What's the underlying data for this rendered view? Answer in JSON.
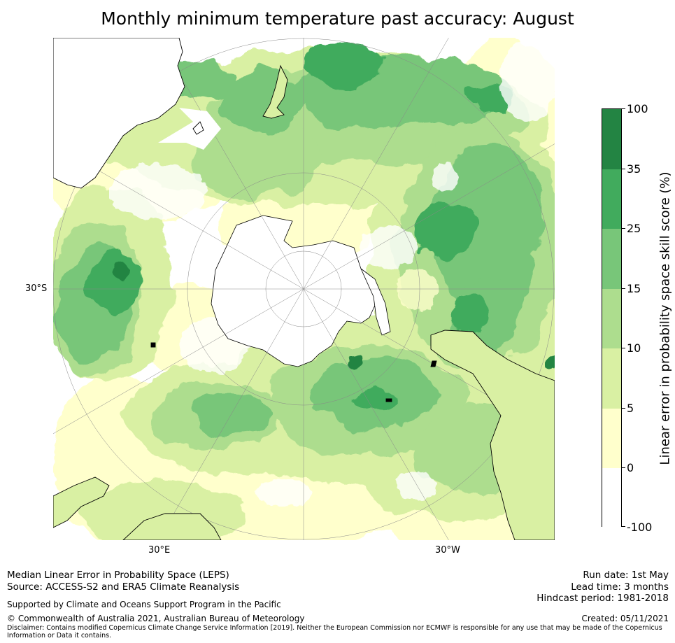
{
  "title": "Monthly minimum temperature past accuracy: August",
  "map": {
    "projection": "south polar stereographic",
    "lat_labels": {
      "left": "30°S"
    },
    "lon_labels": {
      "bottom_left": "30°E",
      "bottom_right": "30°W"
    },
    "graticule": "on",
    "coastlines": "on"
  },
  "colorbar": {
    "title": "Linear error in probability space skill score (%)",
    "ticks": [
      "100",
      "35",
      "25",
      "15",
      "10",
      "5",
      "0",
      "-100"
    ],
    "bins": [
      {
        "range": "-100 to 0",
        "color": "#ffffff"
      },
      {
        "range": "0 to 5",
        "color": "#ffffcc"
      },
      {
        "range": "5 to 10",
        "color": "#d9f0a3"
      },
      {
        "range": "10 to 15",
        "color": "#addd8e"
      },
      {
        "range": "15 to 25",
        "color": "#78c679"
      },
      {
        "range": "25 to 35",
        "color": "#41ab5d"
      },
      {
        "range": "35 to 100",
        "color": "#238443"
      }
    ]
  },
  "footer": {
    "line1": "Median Linear Error in Probability Space (LEPS)",
    "line2": "Source: ACCESS-S2 and ERA5 Climate Reanalysis",
    "line3": "Supported by Climate and Oceans Support Program in the Pacific",
    "line4": "© Commonwealth of Australia 2021, Australian Bureau of Meteorology",
    "disclaimer1": "Disclaimer: Contains modified Copernicus Climate Change Service Information [2019]. Neither the European Commission nor ECMWF is responsible for any use that may be made of the Copernicus",
    "disclaimer2": "Information or Data it contains.",
    "run_date": "Run date: 1st May",
    "lead_time": "Lead time: 3 months",
    "hindcast": "Hindcast period: 1981-2018",
    "created": "Created: 05/11/2021"
  }
}
